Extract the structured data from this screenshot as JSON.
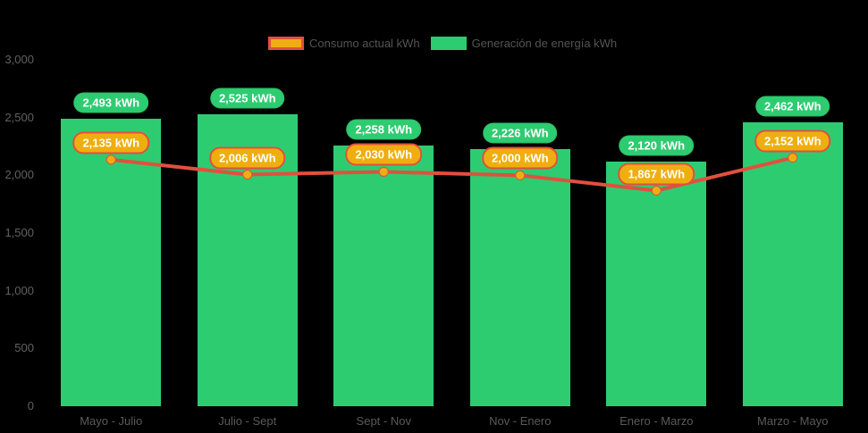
{
  "chart_data": {
    "type": "bar",
    "categories": [
      "Mayo - Julio",
      "Julio - Sept",
      "Sept - Nov",
      "Nov - Enero",
      "Enero - Marzo",
      "Marzo - Mayo"
    ],
    "series": [
      {
        "name": "Consumo actual kWh",
        "type": "line",
        "color": "#e1503e",
        "marker_color": "#efae10",
        "values": [
          2135,
          2006,
          2030,
          2000,
          1867,
          2152
        ],
        "labels": [
          "2,135 kWh",
          "2,006 kWh",
          "2,030 kWh",
          "2,000 kWh",
          "1,867 kWh",
          "2,152 kWh"
        ]
      },
      {
        "name": "Generación de energía kWh",
        "type": "bar",
        "color": "#2ecc71",
        "values": [
          2493,
          2525,
          2258,
          2226,
          2120,
          2462
        ],
        "labels": [
          "2,493 kWh",
          "2,525 kWh",
          "2,258 kWh",
          "2,226 kWh",
          "2,120 kWh",
          "2,462 kWh"
        ]
      }
    ],
    "ylim": [
      0,
      3000
    ],
    "y_ticks": [
      {
        "value": 0,
        "label": "0"
      },
      {
        "value": 500,
        "label": "500"
      },
      {
        "value": 1000,
        "label": "1,000"
      },
      {
        "value": 1500,
        "label": "1,500"
      },
      {
        "value": 2000,
        "label": "2,000"
      },
      {
        "value": 2500,
        "label": "2,500"
      },
      {
        "value": 3000,
        "label": "3,000"
      }
    ],
    "grid": false,
    "legend_position": "top",
    "background": "#000000"
  },
  "colors": {
    "bar_green": "#2ecc71",
    "line_red": "#e1503e",
    "marker_gold": "#efae10",
    "axis_text": "#616161",
    "legend_text": "#545454",
    "pill_text": "#ffffff"
  }
}
